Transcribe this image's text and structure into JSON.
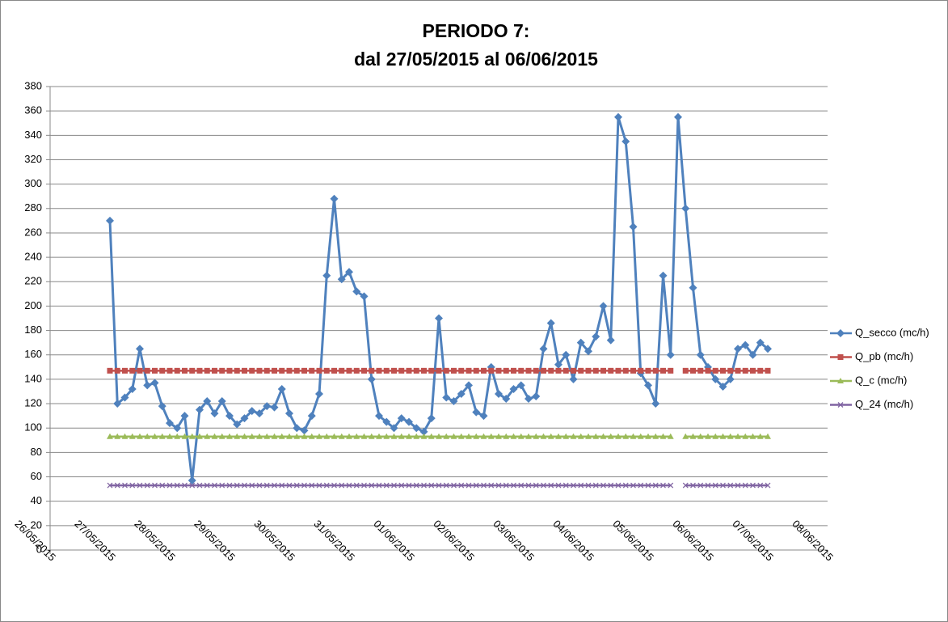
{
  "chart_data": {
    "type": "line",
    "title": "PERIODO 7:",
    "subtitle": "dal 27/05/2015 al 06/06/2015",
    "x": [
      42151,
      42151.125,
      42151.25,
      42151.375,
      42151.5,
      42151.625,
      42151.75,
      42151.875,
      42152,
      42152.125,
      42152.25,
      42152.375,
      42152.5,
      42152.625,
      42152.75,
      42152.875,
      42153,
      42153.125,
      42153.25,
      42153.375,
      42153.5,
      42153.625,
      42153.75,
      42153.875,
      42154,
      42154.125,
      42154.25,
      42154.375,
      42154.5,
      42154.625,
      42154.75,
      42154.875,
      42155,
      42155.125,
      42155.25,
      42155.375,
      42155.5,
      42155.625,
      42155.75,
      42155.875,
      42156,
      42156.125,
      42156.25,
      42156.375,
      42156.5,
      42156.625,
      42156.75,
      42156.875,
      42157,
      42157.125,
      42157.25,
      42157.375,
      42157.5,
      42157.625,
      42157.75,
      42157.875,
      42158,
      42158.125,
      42158.25,
      42158.375,
      42158.5,
      42158.625,
      42158.75,
      42158.875,
      42159,
      42159.125,
      42159.25,
      42159.375,
      42159.5,
      42159.625,
      42159.75,
      42159.875,
      42160,
      42160.125,
      42160.25,
      42160.375,
      42160.5,
      42160.625,
      42160.75,
      42160.875,
      42161,
      42161.125,
      42161.25,
      42161.375,
      42161.5,
      42161.625,
      42161.75,
      42161.875,
      42162
    ],
    "series": [
      {
        "name": "Q_secco (mc/h)",
        "color": "#4f81bd",
        "marker": "diamond",
        "values": [
          270,
          120,
          125,
          132,
          165,
          135,
          137,
          118,
          104,
          100,
          110,
          57,
          115,
          122,
          112,
          122,
          110,
          103,
          108,
          114,
          112,
          118,
          117,
          132,
          112,
          100,
          98,
          110,
          128,
          225,
          288,
          222,
          228,
          212,
          208,
          140,
          110,
          105,
          100,
          108,
          105,
          100,
          97,
          108,
          190,
          125,
          122,
          128,
          135,
          113,
          110,
          150,
          128,
          124,
          132,
          135,
          124,
          126,
          165,
          186,
          152,
          160,
          140,
          170,
          163,
          175,
          200,
          172,
          355,
          335,
          265,
          145,
          135,
          120,
          225,
          160,
          355,
          280,
          215,
          160,
          150,
          140,
          134,
          140,
          165,
          168,
          160,
          170,
          165
        ]
      },
      {
        "name": "Q_pb (mc/h)",
        "color": "#c0504d",
        "marker": "square",
        "values": [
          147,
          147,
          147,
          147,
          147,
          147,
          147,
          147,
          147,
          147,
          147,
          147,
          147,
          147,
          147,
          147,
          147,
          147,
          147,
          147,
          147,
          147,
          147,
          147,
          147,
          147,
          147,
          147,
          147,
          147,
          147,
          147,
          147,
          147,
          147,
          147,
          147,
          147,
          147,
          147,
          147,
          147,
          147,
          147,
          147,
          147,
          147,
          147,
          147,
          147,
          147,
          147,
          147,
          147,
          147,
          147,
          147,
          147,
          147,
          147,
          147,
          147,
          147,
          147,
          147,
          147,
          147,
          147,
          147,
          147,
          147,
          147,
          147,
          147,
          147,
          147,
          null,
          147,
          147,
          147,
          147,
          147,
          147,
          147,
          147,
          147,
          147,
          147,
          147
        ]
      },
      {
        "name": "Q_c (mc/h)",
        "color": "#9bbb59",
        "marker": "triangle",
        "values": [
          93,
          93,
          93,
          93,
          93,
          93,
          93,
          93,
          93,
          93,
          93,
          93,
          93,
          93,
          93,
          93,
          93,
          93,
          93,
          93,
          93,
          93,
          93,
          93,
          93,
          93,
          93,
          93,
          93,
          93,
          93,
          93,
          93,
          93,
          93,
          93,
          93,
          93,
          93,
          93,
          93,
          93,
          93,
          93,
          93,
          93,
          93,
          93,
          93,
          93,
          93,
          93,
          93,
          93,
          93,
          93,
          93,
          93,
          93,
          93,
          93,
          93,
          93,
          93,
          93,
          93,
          93,
          93,
          93,
          93,
          93,
          93,
          93,
          93,
          93,
          93,
          null,
          93,
          93,
          93,
          93,
          93,
          93,
          93,
          93,
          93,
          93,
          93,
          93
        ]
      },
      {
        "name": "Q_24 (mc/h)",
        "color": "#8064a2",
        "marker": "x",
        "values": [
          53,
          53,
          53,
          53,
          53,
          53,
          53,
          53,
          53,
          53,
          53,
          53,
          53,
          53,
          53,
          53,
          53,
          53,
          53,
          53,
          53,
          53,
          53,
          53,
          53,
          53,
          53,
          53,
          53,
          53,
          53,
          53,
          53,
          53,
          53,
          53,
          53,
          53,
          53,
          53,
          53,
          53,
          53,
          53,
          53,
          53,
          53,
          53,
          53,
          53,
          53,
          53,
          53,
          53,
          53,
          53,
          53,
          53,
          53,
          53,
          53,
          53,
          53,
          53,
          53,
          53,
          53,
          53,
          53,
          53,
          53,
          53,
          53,
          53,
          53,
          53,
          null,
          53,
          53,
          53,
          53,
          53,
          53,
          53,
          53,
          53,
          53,
          53,
          53
        ]
      }
    ],
    "xlim": [
      42150,
      42163
    ],
    "xticks": [
      {
        "value": 42150,
        "label": "26/05/2015"
      },
      {
        "value": 42151,
        "label": "27/05/2015"
      },
      {
        "value": 42152,
        "label": "28/05/2015"
      },
      {
        "value": 42153,
        "label": "29/05/2015"
      },
      {
        "value": 42154,
        "label": "30/05/2015"
      },
      {
        "value": 42155,
        "label": "31/05/2015"
      },
      {
        "value": 42156,
        "label": "01/06/2015"
      },
      {
        "value": 42157,
        "label": "02/06/2015"
      },
      {
        "value": 42158,
        "label": "03/06/2015"
      },
      {
        "value": 42159,
        "label": "04/06/2015"
      },
      {
        "value": 42160,
        "label": "05/06/2015"
      },
      {
        "value": 42161,
        "label": "06/06/2015"
      },
      {
        "value": 42162,
        "label": "07/06/2015"
      },
      {
        "value": 42163,
        "label": "08/06/2015"
      }
    ],
    "ylim": [
      0,
      380
    ],
    "yticks": [
      0,
      20,
      40,
      60,
      80,
      100,
      120,
      140,
      160,
      180,
      200,
      220,
      240,
      260,
      280,
      300,
      320,
      340,
      360,
      380
    ],
    "grid": true,
    "legend": "right"
  }
}
